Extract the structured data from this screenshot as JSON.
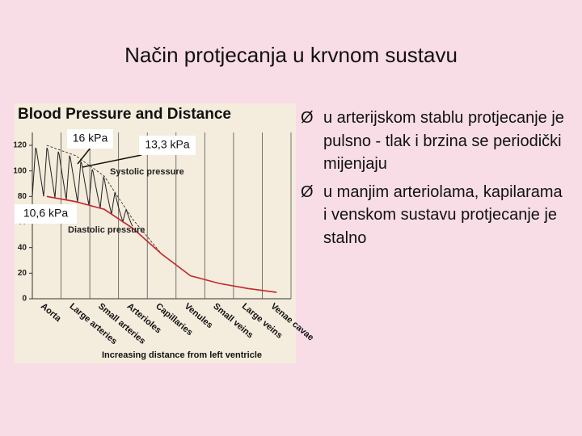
{
  "slide": {
    "title": "Način protjecanja u krvnom sustavu",
    "bullets": [
      "u arterijskom stablu protjecanje je pulsno - tlak i brzina se periodički mijenjaju",
      "u manjim arteriolama, kapilarama i venskom sustavu protjecanje je stalno"
    ]
  },
  "chart_data": {
    "type": "line",
    "title": "Blood Pressure and Distance",
    "x_label": "Increasing distance from left ventricle",
    "categories": [
      "Aorta",
      "Large arteries",
      "Small arteries",
      "Arterioles",
      "Capillaries",
      "Venules",
      "Small veins",
      "Large veins",
      "Venae cavae"
    ],
    "series": [
      {
        "name": "Systolic pressure",
        "color": "#222222",
        "values": [
          120,
          112,
          96,
          62,
          35,
          18,
          12,
          8,
          5
        ]
      },
      {
        "name": "Diastolic pressure",
        "color": "#c0282d",
        "values": [
          80,
          76,
          70,
          55,
          35,
          18,
          12,
          8,
          5
        ]
      }
    ],
    "ylim": [
      0,
      130
    ],
    "yticks": [
      0,
      20,
      40,
      60,
      80,
      100,
      120
    ],
    "annotations": [
      "16 kPa",
      "13,3 kPa",
      "10,6 kPa"
    ]
  }
}
